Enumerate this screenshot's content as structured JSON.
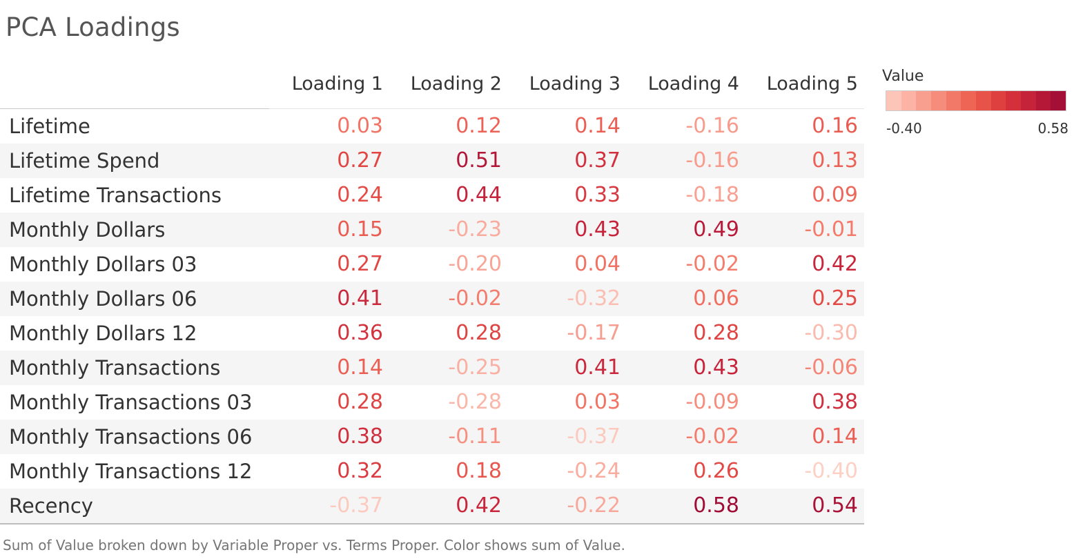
{
  "title": "PCA Loadings",
  "caption": "Sum of Value broken down by Variable Proper vs. Terms Proper.  Color shows sum of Value.",
  "chart_data": {
    "type": "heatmap",
    "columns": [
      "Loading 1",
      "Loading 2",
      "Loading 3",
      "Loading 4",
      "Loading 5"
    ],
    "rows": [
      {
        "label": "Lifetime",
        "values": [
          0.03,
          0.12,
          0.14,
          -0.16,
          0.16
        ]
      },
      {
        "label": "Lifetime Spend",
        "values": [
          0.27,
          0.51,
          0.37,
          -0.16,
          0.13
        ]
      },
      {
        "label": "Lifetime Transactions",
        "values": [
          0.24,
          0.44,
          0.33,
          -0.18,
          0.09
        ]
      },
      {
        "label": "Monthly Dollars",
        "values": [
          0.15,
          -0.23,
          0.43,
          0.49,
          -0.01
        ]
      },
      {
        "label": "Monthly Dollars 03",
        "values": [
          0.27,
          -0.2,
          0.04,
          -0.02,
          0.42
        ]
      },
      {
        "label": "Monthly Dollars 06",
        "values": [
          0.41,
          -0.02,
          -0.32,
          0.06,
          0.25
        ]
      },
      {
        "label": "Monthly Dollars 12",
        "values": [
          0.36,
          0.28,
          -0.17,
          0.28,
          -0.3
        ]
      },
      {
        "label": "Monthly Transactions",
        "values": [
          0.14,
          -0.25,
          0.41,
          0.43,
          -0.06
        ]
      },
      {
        "label": "Monthly Transactions 03",
        "values": [
          0.28,
          -0.28,
          0.03,
          -0.09,
          0.38
        ]
      },
      {
        "label": "Monthly Transactions 06",
        "values": [
          0.38,
          -0.11,
          -0.37,
          -0.02,
          0.14
        ]
      },
      {
        "label": "Monthly Transactions 12",
        "values": [
          0.32,
          0.18,
          -0.24,
          0.26,
          -0.4
        ]
      },
      {
        "label": "Recency",
        "values": [
          -0.37,
          0.42,
          -0.22,
          0.58,
          0.54
        ]
      }
    ],
    "legend": {
      "title": "Value",
      "min_label": "-0.40",
      "max_label": "0.58",
      "min": -0.4,
      "max": 0.58,
      "colors": [
        "#fcc5b8",
        "#fcb3a6",
        "#f99f90",
        "#f68c7b",
        "#f27868",
        "#ee6556",
        "#e75249",
        "#de4040",
        "#d3303c",
        "#c42339",
        "#b51837",
        "#a30f36"
      ],
      "placement": "right"
    }
  }
}
